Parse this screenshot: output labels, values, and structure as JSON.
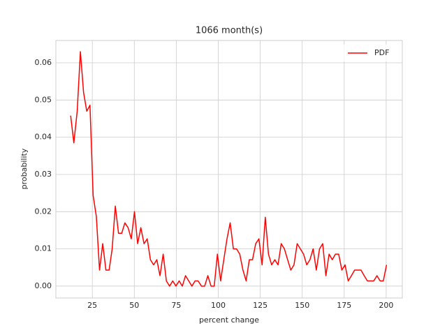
{
  "chart_data": {
    "type": "line",
    "title": "1066 month(s)",
    "xlabel": "percent change",
    "ylabel": "probability",
    "x": [
      12.1,
      14,
      16,
      17.9,
      19.8,
      21.7,
      23.6,
      25.5,
      27.4,
      29.3,
      31.2,
      33.1,
      35,
      36.8,
      38.7,
      40.6,
      42.5,
      44.4,
      46.3,
      48.2,
      50.1,
      52,
      53.9,
      55.8,
      57.7,
      59.6,
      61.5,
      63.4,
      65.3,
      67.2,
      69.1,
      71,
      72.9,
      74.8,
      76.7,
      78.6,
      80.5,
      82.4,
      84.3,
      86.2,
      88,
      90,
      91.9,
      93.8,
      95.7,
      97.6,
      99.5,
      101.4,
      103.3,
      105.2,
      107.1,
      109,
      110.9,
      112.8,
      114.7,
      116.6,
      118.5,
      120.4,
      122.3,
      124.2,
      126.1,
      128,
      129.9,
      131.8,
      133.7,
      135.6,
      137.5,
      139.4,
      141.3,
      143.2,
      145.1,
      147,
      148.9,
      150.8,
      152.7,
      154.6,
      156.5,
      158.4,
      160.3,
      162.2,
      164.1,
      166,
      167.9,
      169.8,
      171.7,
      173.6,
      175.5,
      177.4,
      179.3,
      181.2,
      183.1,
      185,
      186.9,
      188.8,
      190.7,
      192.6,
      194.5,
      196.4,
      198.3,
      200.2
    ],
    "series": [
      {
        "name": "PDF",
        "color": "#ff0000",
        "values": [
          0.0458,
          0.0385,
          0.047,
          0.063,
          0.052,
          0.047,
          0.0486,
          0.0243,
          0.0187,
          0.0043,
          0.0114,
          0.0043,
          0.0043,
          0.0099,
          0.0215,
          0.0142,
          0.0142,
          0.017,
          0.0157,
          0.0127,
          0.02,
          0.0114,
          0.0157,
          0.0114,
          0.0127,
          0.0071,
          0.0057,
          0.0071,
          0.0028,
          0.0086,
          0.0014,
          0,
          0.0014,
          0,
          0.0014,
          0,
          0.0028,
          0.0014,
          0,
          0.0014,
          0.0014,
          0,
          0,
          0.0028,
          0,
          0,
          0.0086,
          0.0014,
          0.0071,
          0.0127,
          0.017,
          0.01,
          0.01,
          0.0086,
          0.0043,
          0.0014,
          0.0071,
          0.0071,
          0.0114,
          0.0127,
          0.0057,
          0.0185,
          0.0086,
          0.0057,
          0.0071,
          0.0057,
          0.0114,
          0.01,
          0.0071,
          0.0043,
          0.0057,
          0.0114,
          0.01,
          0.0086,
          0.0057,
          0.0071,
          0.01,
          0.0043,
          0.01,
          0.0114,
          0.0028,
          0.0086,
          0.0071,
          0.0086,
          0.0086,
          0.0043,
          0.0057,
          0.0014,
          0.0028,
          0.0043,
          0.0043,
          0.0043,
          0.0028,
          0.0014,
          0.0014,
          0.0014,
          0.0028,
          0.0014,
          0.0014,
          0.0057
        ]
      }
    ],
    "xlim": [
      3.3,
      209.6
    ],
    "ylim": [
      -0.0032,
      0.066
    ],
    "xticks": [
      25,
      50,
      75,
      100,
      125,
      150,
      175,
      200
    ],
    "yticks": [
      {
        "value": 0,
        "label": "0.00"
      },
      {
        "value": 0.01,
        "label": "0.01"
      },
      {
        "value": 0.02,
        "label": "0.02"
      },
      {
        "value": 0.03,
        "label": "0.03"
      },
      {
        "value": 0.04,
        "label": "0.04"
      },
      {
        "value": 0.05,
        "label": "0.05"
      },
      {
        "value": 0.06,
        "label": "0.06"
      }
    ],
    "grid": true,
    "legend": "upper right"
  }
}
